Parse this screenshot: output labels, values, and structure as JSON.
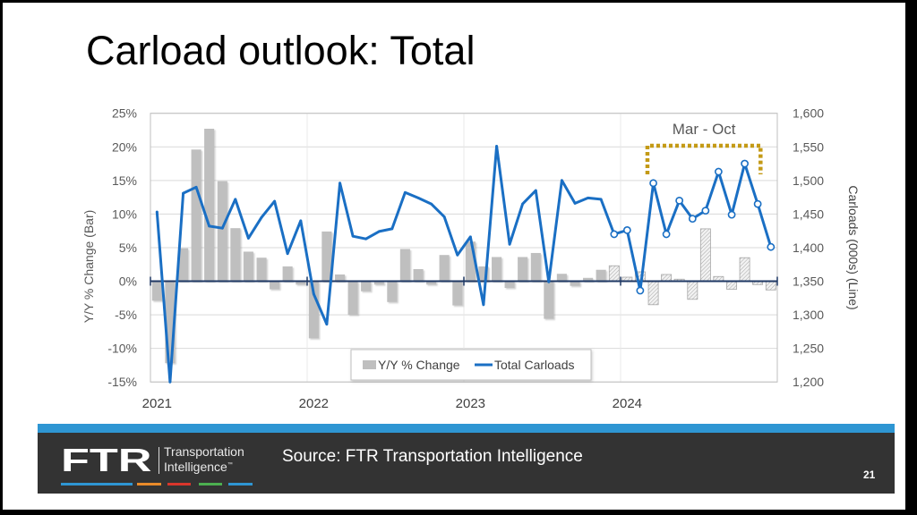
{
  "slide": {
    "title": "Carload outlook: Total",
    "source": "Source: FTR Transportation Intelligence",
    "page_number": "21",
    "logo": {
      "wordmark": "FTR",
      "line1": "Transportation",
      "line2": "Intelligence",
      "tm": "™"
    }
  },
  "colors": {
    "footer_blue": "#2e96d3",
    "footer_dark": "#333333",
    "line": "#1a6fc4",
    "bar": "#bfbfbf",
    "bar_forecast_border": "#a6a6a6",
    "zero_axis": "#1f3864",
    "gridline": "#d9d9d9",
    "annotation": "#c49a16",
    "logo_stripes": [
      "#2e96d3",
      "#e98b2a",
      "#d9362b",
      "#4caf50",
      "#2e96d3"
    ]
  },
  "chart_data": {
    "type": "bar",
    "title": "Carload outlook: Total",
    "x": [
      2021,
      2021.083,
      2021.167,
      2021.25,
      2021.333,
      2021.417,
      2021.5,
      2021.583,
      2021.667,
      2021.75,
      2021.833,
      2021.917,
      2022,
      2022.083,
      2022.167,
      2022.25,
      2022.333,
      2022.417,
      2022.5,
      2022.583,
      2022.667,
      2022.75,
      2022.833,
      2022.917,
      2023,
      2023.083,
      2023.167,
      2023.25,
      2023.333,
      2023.417,
      2023.5,
      2023.583,
      2023.667,
      2023.75,
      2023.833,
      2023.917,
      2024,
      2024.083,
      2024.167,
      2024.25,
      2024.333,
      2024.417,
      2024.5,
      2024.583,
      2024.667,
      2024.75,
      2024.833,
      2024.917
    ],
    "xlim": [
      2020.958,
      2024.958
    ],
    "x_ticks": [
      2021,
      2022,
      2023,
      2024
    ],
    "x_tick_labels": [
      "2021",
      "2022",
      "2023",
      "2024"
    ],
    "y_left": {
      "label": "Y/Y % Change (Bar)",
      "lim": [
        -15,
        25
      ],
      "ticks": [
        -15,
        -10,
        -5,
        0,
        5,
        10,
        15,
        20,
        25
      ],
      "tick_labels": [
        "-15%",
        "-10%",
        "-5%",
        "0%",
        "5%",
        "10%",
        "15%",
        "20%",
        "25%"
      ]
    },
    "y_right": {
      "label": "Carloads (000s) (Line)",
      "lim": [
        1200,
        1600
      ],
      "ticks": [
        1200,
        1250,
        1300,
        1350,
        1400,
        1450,
        1500,
        1550,
        1600
      ],
      "tick_labels": [
        "1,200",
        "1,250",
        "1,300",
        "1,350",
        "1,400",
        "1,450",
        "1,500",
        "1,550",
        "1,600"
      ]
    },
    "series": [
      {
        "name": "Y/Y % Change",
        "type": "bar",
        "axis": "left",
        "values": [
          -2.9,
          -12.2,
          4.9,
          19.6,
          22.7,
          14.9,
          7.9,
          4.4,
          3.5,
          -1.2,
          2.2,
          -0.5,
          -8.5,
          7.4,
          1.0,
          -5.0,
          -1.5,
          -0.5,
          -3.1,
          4.8,
          1.8,
          -0.5,
          3.9,
          -3.6,
          5.9,
          2.2,
          3.6,
          -1.0,
          3.6,
          4.2,
          -5.6,
          1.1,
          -0.7,
          0.5,
          1.7,
          2.3,
          0.6,
          1.4,
          -3.5,
          1.0,
          0.3,
          -2.7,
          7.8,
          0.7,
          -1.2,
          3.5,
          -0.5,
          -1.3
        ]
      },
      {
        "name": "Total Carloads",
        "type": "line",
        "axis": "right",
        "values": [
          1453,
          1200,
          1481,
          1490,
          1432,
          1429,
          1472,
          1414,
          1445,
          1469,
          1391,
          1440,
          1331,
          1286,
          1496,
          1417,
          1413,
          1424,
          1428,
          1482,
          1474,
          1465,
          1446,
          1389,
          1416,
          1315,
          1551,
          1405,
          1465,
          1485,
          1349,
          1500,
          1466,
          1474,
          1472,
          1420,
          1426,
          1336,
          1496,
          1420,
          1470,
          1443,
          1455,
          1513,
          1449,
          1525,
          1465,
          1401
        ]
      }
    ],
    "forecast_start_index": 35,
    "annotation": {
      "text": "Mar - Oct",
      "x_from": 2024.167,
      "x_to": 2024.75
    },
    "legend": {
      "position": "bottom-center"
    },
    "grid": true
  }
}
